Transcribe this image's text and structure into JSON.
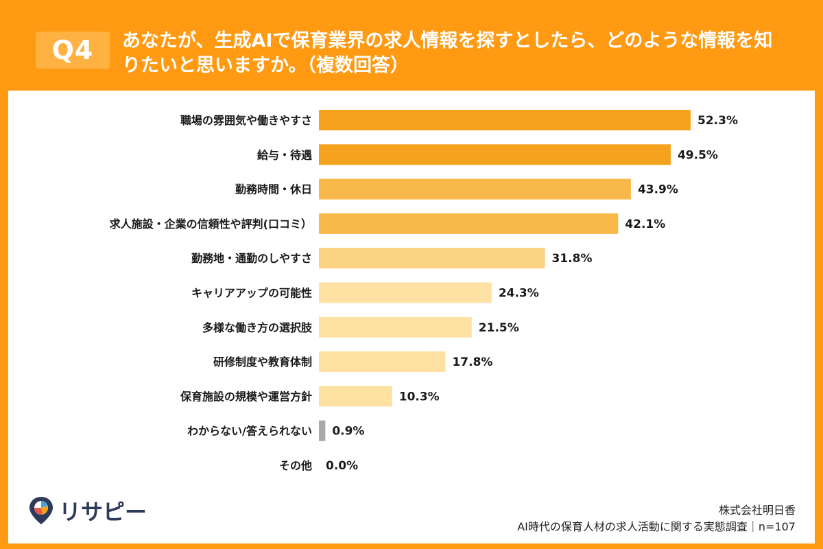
{
  "header": {
    "badge": "Q4",
    "question": "あなたが、生成AIで保育業界の求人情報を探すとしたら、どのような情報を知りたいと思いますか。（複数回答）"
  },
  "footer": {
    "company": "株式会社明日香",
    "survey": "AI時代の保育人材の求人活動に関する実態調査｜n=107"
  },
  "logo": {
    "text": "リサピー"
  },
  "colors": {
    "bar_dark": "#f5a21f",
    "bar_mid": "#f8b84a",
    "bar_light": "#fbd383",
    "bar_lighter": "#fde2a3",
    "bar_gray": "#a9a9a9"
  },
  "chart_data": {
    "type": "bar",
    "orientation": "horizontal",
    "categories": [
      "職場の雰囲気や働きやすさ",
      "給与・待遇",
      "勤務時間・休日",
      "求人施設・企業の信頼性や評判(口コミ）",
      "勤務地・通勤のしやすさ",
      "キャリアアップの可能性",
      "多様な働き方の選択肢",
      "研修制度や教育体制",
      "保育施設の規模や運営方針",
      "わからない/答えられない",
      "その他"
    ],
    "values": [
      52.3,
      49.5,
      43.9,
      42.1,
      31.8,
      24.3,
      21.5,
      17.8,
      10.3,
      0.9,
      0.0
    ],
    "value_labels": [
      "52.3%",
      "49.5%",
      "43.9%",
      "42.1%",
      "31.8%",
      "24.3%",
      "21.5%",
      "17.8%",
      "10.3%",
      "0.9%",
      "0.0%"
    ],
    "xlim": [
      0,
      52.3
    ],
    "grid": false,
    "legend": "none"
  }
}
